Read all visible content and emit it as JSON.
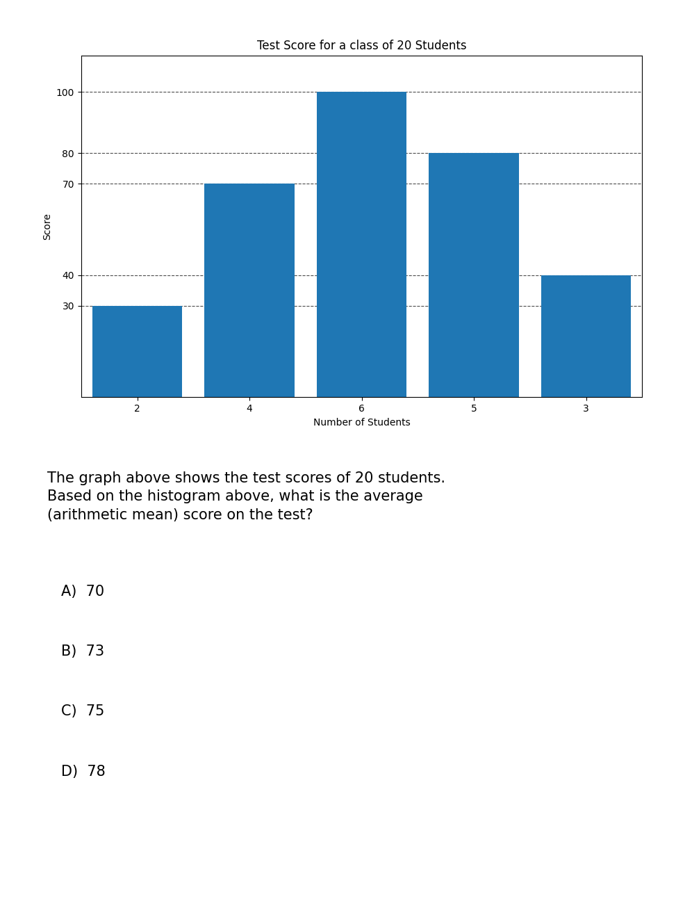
{
  "chart_data": {
    "type": "bar",
    "title": "Test Score for a class of 20 Students",
    "x_label": "Number of Students",
    "y_label": "Score",
    "categories": [
      "2",
      "4",
      "6",
      "5",
      "3"
    ],
    "values": [
      30,
      70,
      100,
      80,
      40
    ],
    "ylim": [
      0,
      112
    ],
    "yticks": [
      30,
      40,
      70,
      80,
      100
    ],
    "grid": true,
    "annotations": [
      "The graph above shows the test scores of 20 students.\nBased on the histogram above, what is the average\n(arithmetic mean) score on the test?",
      "A)  70",
      "B)  73",
      "C)  75",
      "D)  78"
    ]
  }
}
